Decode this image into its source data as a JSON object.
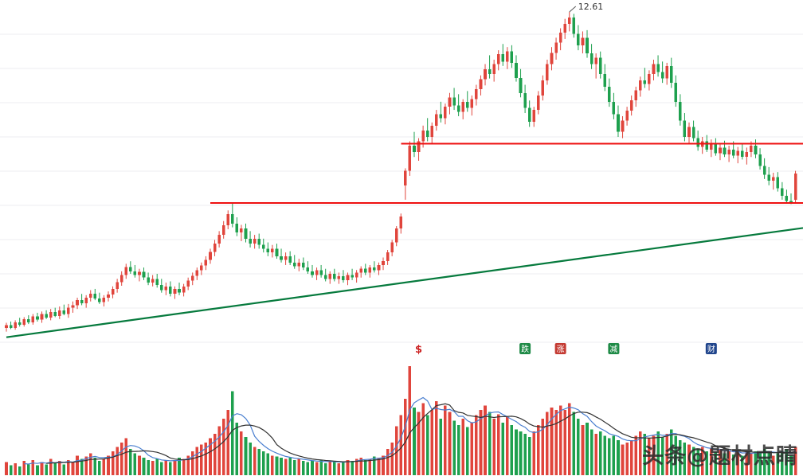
{
  "watermark": {
    "text": "头条@题材点睛"
  },
  "colors": {
    "background": "#ffffff",
    "grid": "#ececf1",
    "up": "#e0453c",
    "down": "#1ea04e",
    "resistance": "#ee1111",
    "trend": "#067a3d",
    "label_text": "#333333",
    "ma_fast": "#4a7fd0",
    "ma_slow": "#333333"
  },
  "chart_data": {
    "type": "candlestick",
    "title": "",
    "xlabel": "",
    "ylabel": "",
    "grid": "horizontal",
    "legend": "none",
    "price_axis": {
      "min": 7.35,
      "max": 12.8
    },
    "candles": [
      [
        7.58,
        7.66,
        7.52,
        7.62
      ],
      [
        7.62,
        7.68,
        7.56,
        7.58
      ],
      [
        7.58,
        7.7,
        7.55,
        7.67
      ],
      [
        7.67,
        7.74,
        7.6,
        7.63
      ],
      [
        7.63,
        7.75,
        7.6,
        7.72
      ],
      [
        7.72,
        7.78,
        7.64,
        7.67
      ],
      [
        7.67,
        7.8,
        7.63,
        7.76
      ],
      [
        7.76,
        7.82,
        7.68,
        7.71
      ],
      [
        7.71,
        7.84,
        7.66,
        7.8
      ],
      [
        7.8,
        7.86,
        7.72,
        7.74
      ],
      [
        7.74,
        7.88,
        7.7,
        7.83
      ],
      [
        7.83,
        7.9,
        7.75,
        7.77
      ],
      [
        7.77,
        7.92,
        7.72,
        7.86
      ],
      [
        7.86,
        7.95,
        7.78,
        7.8
      ],
      [
        7.8,
        7.96,
        7.74,
        7.9
      ],
      [
        7.9,
        8.0,
        7.82,
        7.94
      ],
      [
        7.94,
        8.06,
        7.88,
        8.02
      ],
      [
        8.02,
        8.12,
        7.94,
        7.97
      ],
      [
        7.97,
        8.1,
        7.9,
        8.06
      ],
      [
        8.06,
        8.18,
        8.0,
        8.12
      ],
      [
        8.12,
        8.2,
        8.02,
        8.05
      ],
      [
        8.05,
        8.14,
        7.96,
        7.99
      ],
      [
        7.99,
        8.1,
        7.92,
        8.06
      ],
      [
        8.06,
        8.16,
        8.0,
        8.11
      ],
      [
        8.11,
        8.24,
        8.05,
        8.2
      ],
      [
        8.2,
        8.36,
        8.14,
        8.31
      ],
      [
        8.31,
        8.48,
        8.25,
        8.42
      ],
      [
        8.42,
        8.6,
        8.36,
        8.55
      ],
      [
        8.55,
        8.64,
        8.44,
        8.48
      ],
      [
        8.48,
        8.58,
        8.38,
        8.42
      ],
      [
        8.42,
        8.52,
        8.32,
        8.47
      ],
      [
        8.47,
        8.54,
        8.34,
        8.38
      ],
      [
        8.38,
        8.46,
        8.26,
        8.3
      ],
      [
        8.3,
        8.42,
        8.24,
        8.36
      ],
      [
        8.36,
        8.44,
        8.22,
        8.26
      ],
      [
        8.26,
        8.36,
        8.14,
        8.18
      ],
      [
        8.18,
        8.3,
        8.1,
        8.24
      ],
      [
        8.24,
        8.32,
        8.08,
        8.12
      ],
      [
        8.12,
        8.24,
        8.04,
        8.2
      ],
      [
        8.2,
        8.3,
        8.1,
        8.14
      ],
      [
        8.14,
        8.28,
        8.08,
        8.24
      ],
      [
        8.24,
        8.38,
        8.18,
        8.33
      ],
      [
        8.33,
        8.46,
        8.26,
        8.41
      ],
      [
        8.41,
        8.54,
        8.34,
        8.5
      ],
      [
        8.5,
        8.62,
        8.42,
        8.57
      ],
      [
        8.57,
        8.72,
        8.5,
        8.66
      ],
      [
        8.66,
        8.84,
        8.6,
        8.79
      ],
      [
        8.79,
        8.98,
        8.72,
        8.92
      ],
      [
        8.92,
        9.12,
        8.86,
        9.06
      ],
      [
        9.06,
        9.28,
        9.0,
        9.21
      ],
      [
        9.21,
        9.45,
        9.15,
        9.39
      ],
      [
        9.39,
        9.56,
        9.18,
        9.24
      ],
      [
        9.24,
        9.34,
        9.04,
        9.1
      ],
      [
        9.1,
        9.22,
        8.96,
        9.16
      ],
      [
        9.16,
        9.24,
        8.94,
        9.0
      ],
      [
        9.0,
        9.12,
        8.86,
        8.92
      ],
      [
        8.92,
        9.06,
        8.84,
        9.0
      ],
      [
        9.0,
        9.08,
        8.84,
        8.9
      ],
      [
        8.9,
        9.0,
        8.78,
        8.84
      ],
      [
        8.84,
        8.94,
        8.72,
        8.78
      ],
      [
        8.78,
        8.9,
        8.7,
        8.84
      ],
      [
        8.84,
        8.92,
        8.68,
        8.72
      ],
      [
        8.72,
        8.84,
        8.62,
        8.66
      ],
      [
        8.66,
        8.78,
        8.58,
        8.72
      ],
      [
        8.72,
        8.8,
        8.58,
        8.62
      ],
      [
        8.62,
        8.74,
        8.52,
        8.56
      ],
      [
        8.56,
        8.68,
        8.48,
        8.62
      ],
      [
        8.62,
        8.7,
        8.5,
        8.54
      ],
      [
        8.54,
        8.64,
        8.44,
        8.48
      ],
      [
        8.48,
        8.58,
        8.38,
        8.42
      ],
      [
        8.42,
        8.54,
        8.34,
        8.5
      ],
      [
        8.5,
        8.58,
        8.38,
        8.42
      ],
      [
        8.42,
        8.52,
        8.32,
        8.36
      ],
      [
        8.36,
        8.48,
        8.28,
        8.44
      ],
      [
        8.44,
        8.52,
        8.32,
        8.36
      ],
      [
        8.36,
        8.46,
        8.28,
        8.4
      ],
      [
        8.4,
        8.5,
        8.3,
        8.34
      ],
      [
        8.34,
        8.46,
        8.26,
        8.42
      ],
      [
        8.42,
        8.52,
        8.34,
        8.38
      ],
      [
        8.38,
        8.5,
        8.3,
        8.46
      ],
      [
        8.46,
        8.56,
        8.38,
        8.52
      ],
      [
        8.52,
        8.6,
        8.42,
        8.46
      ],
      [
        8.46,
        8.58,
        8.38,
        8.54
      ],
      [
        8.54,
        8.64,
        8.46,
        8.5
      ],
      [
        8.5,
        8.62,
        8.42,
        8.58
      ],
      [
        8.58,
        8.7,
        8.5,
        8.64
      ],
      [
        8.64,
        8.82,
        8.58,
        8.78
      ],
      [
        8.78,
        8.98,
        8.72,
        8.94
      ],
      [
        8.94,
        9.2,
        8.88,
        9.16
      ],
      [
        9.16,
        9.4,
        9.08,
        9.35
      ],
      [
        9.85,
        10.12,
        9.62,
        10.08
      ],
      [
        10.08,
        10.55,
        10.0,
        10.48
      ],
      [
        10.48,
        10.7,
        10.3,
        10.38
      ],
      [
        10.38,
        10.6,
        10.24,
        10.55
      ],
      [
        10.55,
        10.8,
        10.45,
        10.72
      ],
      [
        10.72,
        10.92,
        10.55,
        10.62
      ],
      [
        10.62,
        10.85,
        10.5,
        10.8
      ],
      [
        10.8,
        11.05,
        10.72,
        10.98
      ],
      [
        10.98,
        11.18,
        10.85,
        10.92
      ],
      [
        10.92,
        11.15,
        10.82,
        11.1
      ],
      [
        11.1,
        11.32,
        10.98,
        11.25
      ],
      [
        11.25,
        11.4,
        11.05,
        11.12
      ],
      [
        11.12,
        11.3,
        10.95,
        11.02
      ],
      [
        11.02,
        11.22,
        10.9,
        11.18
      ],
      [
        11.18,
        11.35,
        11.02,
        11.08
      ],
      [
        11.08,
        11.28,
        10.96,
        11.22
      ],
      [
        11.22,
        11.45,
        11.12,
        11.38
      ],
      [
        11.38,
        11.6,
        11.28,
        11.54
      ],
      [
        11.54,
        11.78,
        11.44,
        11.7
      ],
      [
        11.7,
        11.92,
        11.55,
        11.62
      ],
      [
        11.62,
        11.85,
        11.5,
        11.78
      ],
      [
        11.78,
        12.0,
        11.68,
        11.94
      ],
      [
        11.94,
        12.1,
        11.75,
        11.82
      ],
      [
        11.82,
        12.05,
        11.7,
        11.98
      ],
      [
        11.98,
        12.08,
        11.72,
        11.8
      ],
      [
        11.8,
        11.92,
        11.5,
        11.56
      ],
      [
        11.56,
        11.7,
        11.25,
        11.32
      ],
      [
        11.32,
        11.45,
        11.0,
        11.08
      ],
      [
        11.08,
        11.2,
        10.78,
        10.86
      ],
      [
        10.86,
        11.1,
        10.78,
        11.05
      ],
      [
        11.05,
        11.35,
        10.98,
        11.28
      ],
      [
        11.28,
        11.6,
        11.2,
        11.52
      ],
      [
        11.52,
        11.85,
        11.45,
        11.78
      ],
      [
        11.78,
        12.05,
        11.68,
        11.96
      ],
      [
        11.96,
        12.2,
        11.85,
        12.12
      ],
      [
        12.12,
        12.35,
        12.0,
        12.28
      ],
      [
        12.28,
        12.5,
        12.18,
        12.42
      ],
      [
        12.42,
        12.61,
        12.3,
        12.52
      ],
      [
        12.52,
        12.58,
        12.2,
        12.26
      ],
      [
        12.26,
        12.4,
        12.0,
        12.08
      ],
      [
        12.08,
        12.3,
        11.95,
        12.2
      ],
      [
        12.2,
        12.32,
        11.88,
        11.95
      ],
      [
        11.95,
        12.1,
        11.7,
        11.78
      ],
      [
        11.78,
        11.95,
        11.55,
        11.88
      ],
      [
        11.88,
        11.98,
        11.55,
        11.62
      ],
      [
        11.62,
        11.78,
        11.35,
        11.42
      ],
      [
        11.42,
        11.55,
        11.1,
        11.18
      ],
      [
        11.18,
        11.32,
        10.9,
        10.98
      ],
      [
        10.98,
        11.12,
        10.62,
        10.7
      ],
      [
        10.7,
        10.95,
        10.6,
        10.88
      ],
      [
        10.88,
        11.1,
        10.8,
        11.04
      ],
      [
        11.04,
        11.28,
        10.96,
        11.2
      ],
      [
        11.2,
        11.42,
        11.1,
        11.36
      ],
      [
        11.36,
        11.58,
        11.26,
        11.52
      ],
      [
        11.52,
        11.72,
        11.4,
        11.46
      ],
      [
        11.46,
        11.68,
        11.36,
        11.62
      ],
      [
        11.62,
        11.85,
        11.52,
        11.78
      ],
      [
        11.78,
        11.92,
        11.58,
        11.65
      ],
      [
        11.65,
        11.82,
        11.48,
        11.55
      ],
      [
        11.55,
        11.8,
        11.45,
        11.75
      ],
      [
        11.75,
        11.88,
        11.4,
        11.48
      ],
      [
        11.48,
        11.6,
        11.1,
        11.18
      ],
      [
        11.18,
        11.3,
        10.8,
        10.88
      ],
      [
        10.88,
        11.0,
        10.55,
        10.62
      ],
      [
        10.62,
        10.85,
        10.5,
        10.78
      ],
      [
        10.78,
        10.88,
        10.55,
        10.6
      ],
      [
        10.6,
        10.72,
        10.4,
        10.46
      ],
      [
        10.46,
        10.62,
        10.35,
        10.55
      ],
      [
        10.55,
        10.65,
        10.38,
        10.42
      ],
      [
        10.42,
        10.58,
        10.3,
        10.5
      ],
      [
        10.5,
        10.6,
        10.32,
        10.36
      ],
      [
        10.36,
        10.52,
        10.25,
        10.45
      ],
      [
        10.45,
        10.56,
        10.3,
        10.34
      ],
      [
        10.34,
        10.48,
        10.22,
        10.42
      ],
      [
        10.42,
        10.55,
        10.28,
        10.32
      ],
      [
        10.32,
        10.46,
        10.2,
        10.4
      ],
      [
        10.4,
        10.52,
        10.26,
        10.3
      ],
      [
        10.3,
        10.45,
        10.18,
        10.38
      ],
      [
        10.38,
        10.55,
        10.3,
        10.48
      ],
      [
        10.48,
        10.58,
        10.28,
        10.34
      ],
      [
        10.34,
        10.44,
        10.1,
        10.16
      ],
      [
        10.16,
        10.28,
        9.95,
        10.02
      ],
      [
        10.02,
        10.14,
        9.85,
        9.92
      ],
      [
        9.92,
        10.05,
        9.78,
        9.98
      ],
      [
        9.98,
        10.06,
        9.75,
        9.8
      ],
      [
        9.8,
        9.9,
        9.62,
        9.68
      ],
      [
        9.68,
        9.78,
        9.56,
        9.6
      ],
      [
        9.6,
        9.72,
        9.55,
        9.58
      ],
      [
        9.62,
        10.08,
        9.56,
        10.04
      ]
    ],
    "volumes": [
      12,
      9,
      11,
      8,
      13,
      10,
      14,
      9,
      12,
      10,
      15,
      11,
      13,
      10,
      14,
      12,
      18,
      15,
      17,
      20,
      16,
      13,
      15,
      18,
      22,
      26,
      30,
      34,
      24,
      20,
      18,
      16,
      14,
      13,
      15,
      12,
      14,
      12,
      14,
      16,
      15,
      18,
      22,
      26,
      28,
      30,
      34,
      38,
      45,
      52,
      60,
      77,
      48,
      40,
      35,
      30,
      26,
      24,
      22,
      20,
      18,
      17,
      16,
      15,
      16,
      14,
      15,
      13,
      12,
      13,
      12,
      14,
      11,
      13,
      12,
      11,
      12,
      14,
      13,
      15,
      16,
      14,
      15,
      17,
      16,
      18,
      24,
      30,
      45,
      55,
      70,
      100,
      62,
      58,
      66,
      55,
      60,
      68,
      52,
      64,
      58,
      50,
      46,
      52,
      44,
      48,
      55,
      60,
      64,
      58,
      52,
      56,
      48,
      54,
      46,
      42,
      40,
      38,
      35,
      40,
      46,
      52,
      58,
      62,
      60,
      64,
      60,
      66,
      58,
      52,
      46,
      48,
      42,
      38,
      40,
      36,
      34,
      36,
      32,
      28,
      30,
      32,
      36,
      40,
      38,
      34,
      36,
      40,
      35,
      38,
      42,
      36,
      32,
      30,
      28,
      26,
      24,
      26,
      22,
      25,
      21,
      24,
      20,
      23,
      19,
      22,
      18,
      21,
      20,
      22,
      20,
      24,
      22,
      18,
      20,
      22,
      24,
      18,
      26
    ],
    "volume_ma": [
      {
        "period": 5,
        "color_key": "ma_fast"
      },
      {
        "period": 10,
        "color_key": "ma_slow"
      }
    ],
    "annotations": {
      "peak": {
        "index": 127,
        "price": 12.61,
        "label": "12.61"
      },
      "resistance_lines": [
        {
          "price": 10.51,
          "start_index": 89
        },
        {
          "price": 9.57,
          "start_index": 46
        }
      ],
      "trendline": {
        "start_index": 0,
        "start_price": 7.43,
        "end_index": 180,
        "end_price": 9.17
      },
      "events": [
        {
          "index": 93,
          "label": "$",
          "bg": "",
          "fg": "#cc2222"
        },
        {
          "index": 117,
          "label": "跌",
          "bg": "#1e8a46",
          "fg": "#ffffff"
        },
        {
          "index": 125,
          "label": "涨",
          "bg": "#c43a32",
          "fg": "#ffffff"
        },
        {
          "index": 137,
          "label": "减",
          "bg": "#1e8a46",
          "fg": "#ffffff"
        },
        {
          "index": 159,
          "label": "财",
          "bg": "#20458c",
          "fg": "#ffffff"
        }
      ]
    }
  }
}
